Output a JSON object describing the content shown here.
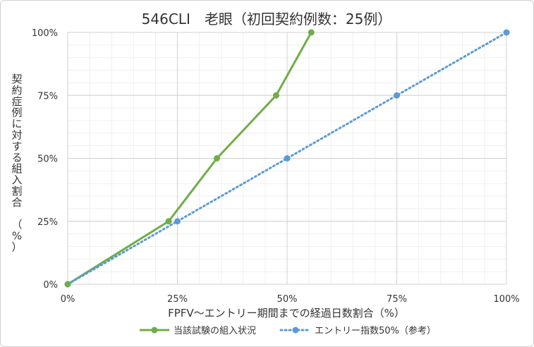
{
  "chart_data": {
    "type": "line",
    "title": "546CLI　老眼（初回契約例数：25例）",
    "xlabel": "FPFV～エントリー期間までの経過日数割合（%）",
    "ylabel": "契約症例に対する組入割合　（%）",
    "xlim": [
      0,
      100
    ],
    "ylim": [
      0,
      100
    ],
    "x_ticks": [
      "0%",
      "25%",
      "50%",
      "75%",
      "100%"
    ],
    "y_ticks": [
      "0%",
      "25%",
      "50%",
      "75%",
      "100%"
    ],
    "grid": true,
    "legend_position": "bottom",
    "series": [
      {
        "name": "当該試験の組入状況",
        "color": "#70ad47",
        "style": "solid",
        "points": [
          [
            0,
            0
          ],
          [
            23,
            25
          ],
          [
            34,
            50
          ],
          [
            47.5,
            75
          ],
          [
            55.5,
            100
          ]
        ]
      },
      {
        "name": "エントリー指数50%（参考）",
        "color": "#5b9bd5",
        "style": "dotted",
        "points": [
          [
            0,
            0
          ],
          [
            25,
            25
          ],
          [
            50,
            50
          ],
          [
            75,
            75
          ],
          [
            100,
            100
          ]
        ]
      }
    ]
  }
}
